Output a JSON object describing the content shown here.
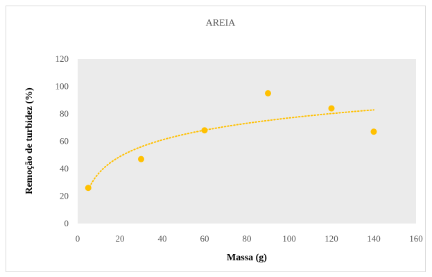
{
  "chart_data": {
    "type": "scatter",
    "title": "AREIA",
    "xlabel": "Massa (g)",
    "ylabel": "Remoção de turbidez (%)",
    "xlim": [
      0,
      160
    ],
    "ylim": [
      0,
      120
    ],
    "xticks": [
      0,
      20,
      40,
      60,
      80,
      100,
      120,
      140,
      160
    ],
    "yticks": [
      0,
      20,
      40,
      60,
      80,
      100,
      120
    ],
    "grid": false,
    "legend": "none",
    "series": [
      {
        "x": [
          5,
          30,
          60,
          90,
          120,
          140
        ],
        "y": [
          26,
          47,
          68,
          95,
          84,
          67
        ],
        "color": "#FFC000"
      }
    ],
    "trendline": {
      "type": "logarithmic",
      "x_range": [
        5,
        140
      ],
      "color": "#FFC000",
      "style": "dotted"
    }
  }
}
